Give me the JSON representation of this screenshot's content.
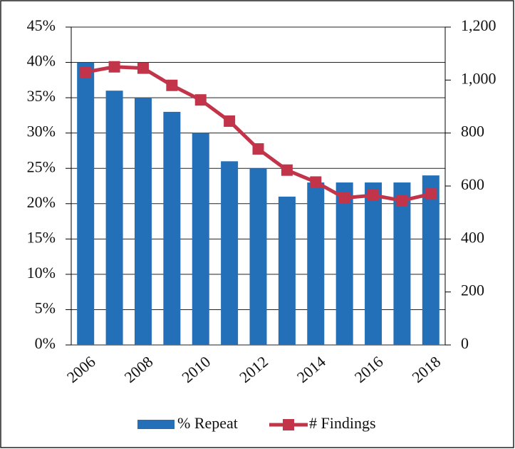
{
  "chart_data": {
    "type": "bar_line",
    "categories": [
      "2006",
      null,
      "2008",
      null,
      "2010",
      null,
      "2012",
      null,
      "2014",
      null,
      "2016",
      null,
      "2018"
    ],
    "series": [
      {
        "name": "% Repeat",
        "color": "#2370b8",
        "type": "bar",
        "values": [
          40,
          36,
          35,
          33,
          30,
          26,
          25,
          21,
          23,
          23,
          23,
          23,
          24
        ]
      },
      {
        "name": "# Findings",
        "color": "#c13449",
        "type": "line",
        "axis": "y2",
        "values": [
          1030,
          1050,
          1045,
          980,
          925,
          845,
          740,
          660,
          615,
          555,
          565,
          545,
          570
        ]
      }
    ],
    "ylim": [
      0,
      45
    ],
    "yticks": [
      {
        "value": 0,
        "label": "0%"
      },
      {
        "value": 5,
        "label": "5%"
      },
      {
        "value": 10,
        "label": "10%"
      },
      {
        "value": 15,
        "label": "15%"
      },
      {
        "value": 20,
        "label": "20%"
      },
      {
        "value": 25,
        "label": "25%"
      },
      {
        "value": 30,
        "label": "30%"
      },
      {
        "value": 35,
        "label": "35%"
      },
      {
        "value": 40,
        "label": "40%"
      },
      {
        "value": 45,
        "label": "45%"
      }
    ],
    "y2lim": [
      0,
      1200
    ],
    "y2ticks": [
      0,
      200,
      400,
      600,
      800,
      {
        "value": 1000,
        "label": "1,000"
      },
      {
        "value": 1200,
        "label": "1,200"
      }
    ],
    "grid": true,
    "legend": "bottom"
  }
}
